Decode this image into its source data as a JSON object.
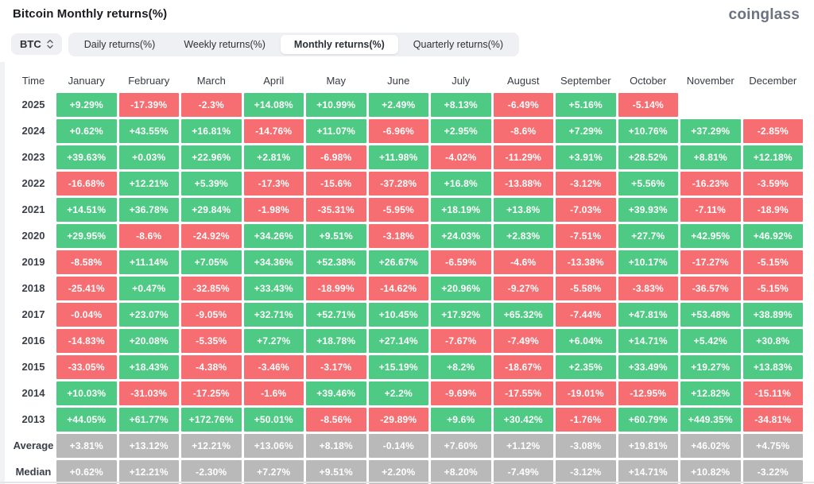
{
  "header": {
    "title": "Bitcoin Monthly returns(%)",
    "logo": "coinglass"
  },
  "controls": {
    "symbol": "BTC",
    "symbol_icon": "up-down-chevron-icon",
    "tabs": [
      {
        "label": "Daily returns(%)",
        "selected": false
      },
      {
        "label": "Weekly returns(%)",
        "selected": false
      },
      {
        "label": "Monthly returns(%)",
        "selected": true
      },
      {
        "label": "Quarterly returns(%)",
        "selected": false
      }
    ]
  },
  "colors": {
    "positive": "#4fca84",
    "negative": "#f66e72",
    "summary": "#b9b9b9"
  },
  "table": {
    "columns": [
      "Time",
      "January",
      "February",
      "March",
      "April",
      "May",
      "June",
      "July",
      "August",
      "September",
      "October",
      "November",
      "December"
    ],
    "rows": [
      {
        "label": "2025",
        "type": "year",
        "cells": [
          "+9.29%",
          "-17.39%",
          "-2.3%",
          "+14.08%",
          "+10.99%",
          "+2.49%",
          "+8.13%",
          "-6.49%",
          "+5.16%",
          "-5.14%",
          null,
          null
        ]
      },
      {
        "label": "2024",
        "type": "year",
        "cells": [
          "+0.62%",
          "+43.55%",
          "+16.81%",
          "-14.76%",
          "+11.07%",
          "-6.96%",
          "+2.95%",
          "-8.6%",
          "+7.29%",
          "+10.76%",
          "+37.29%",
          "-2.85%"
        ]
      },
      {
        "label": "2023",
        "type": "year",
        "cells": [
          "+39.63%",
          "+0.03%",
          "+22.96%",
          "+2.81%",
          "-6.98%",
          "+11.98%",
          "-4.02%",
          "-11.29%",
          "+3.91%",
          "+28.52%",
          "+8.81%",
          "+12.18%"
        ]
      },
      {
        "label": "2022",
        "type": "year",
        "cells": [
          "-16.68%",
          "+12.21%",
          "+5.39%",
          "-17.3%",
          "-15.6%",
          "-37.28%",
          "+16.8%",
          "-13.88%",
          "-3.12%",
          "+5.56%",
          "-16.23%",
          "-3.59%"
        ]
      },
      {
        "label": "2021",
        "type": "year",
        "cells": [
          "+14.51%",
          "+36.78%",
          "+29.84%",
          "-1.98%",
          "-35.31%",
          "-5.95%",
          "+18.19%",
          "+13.8%",
          "-7.03%",
          "+39.93%",
          "-7.11%",
          "-18.9%"
        ]
      },
      {
        "label": "2020",
        "type": "year",
        "cells": [
          "+29.95%",
          "-8.6%",
          "-24.92%",
          "+34.26%",
          "+9.51%",
          "-3.18%",
          "+24.03%",
          "+2.83%",
          "-7.51%",
          "+27.7%",
          "+42.95%",
          "+46.92%"
        ]
      },
      {
        "label": "2019",
        "type": "year",
        "cells": [
          "-8.58%",
          "+11.14%",
          "+7.05%",
          "+34.36%",
          "+52.38%",
          "+26.67%",
          "-6.59%",
          "-4.6%",
          "-13.38%",
          "+10.17%",
          "-17.27%",
          "-5.15%"
        ]
      },
      {
        "label": "2018",
        "type": "year",
        "cells": [
          "-25.41%",
          "+0.47%",
          "-32.85%",
          "+33.43%",
          "-18.99%",
          "-14.62%",
          "+20.96%",
          "-9.27%",
          "-5.58%",
          "-3.83%",
          "-36.57%",
          "-5.15%"
        ]
      },
      {
        "label": "2017",
        "type": "year",
        "cells": [
          "-0.04%",
          "+23.07%",
          "-9.05%",
          "+32.71%",
          "+52.71%",
          "+10.45%",
          "+17.92%",
          "+65.32%",
          "-7.44%",
          "+47.81%",
          "+53.48%",
          "+38.89%"
        ]
      },
      {
        "label": "2016",
        "type": "year",
        "cells": [
          "-14.83%",
          "+20.08%",
          "-5.35%",
          "+7.27%",
          "+18.78%",
          "+27.14%",
          "-7.67%",
          "-7.49%",
          "+6.04%",
          "+14.71%",
          "+5.42%",
          "+30.8%"
        ]
      },
      {
        "label": "2015",
        "type": "year",
        "cells": [
          "-33.05%",
          "+18.43%",
          "-4.38%",
          "-3.46%",
          "-3.17%",
          "+15.19%",
          "+8.2%",
          "-18.67%",
          "+2.35%",
          "+33.49%",
          "+19.27%",
          "+13.83%"
        ]
      },
      {
        "label": "2014",
        "type": "year",
        "cells": [
          "+10.03%",
          "-31.03%",
          "-17.25%",
          "-1.6%",
          "+39.46%",
          "+2.2%",
          "-9.69%",
          "-17.55%",
          "-19.01%",
          "-12.95%",
          "+12.82%",
          "-15.11%"
        ]
      },
      {
        "label": "2013",
        "type": "year",
        "cells": [
          "+44.05%",
          "+61.77%",
          "+172.76%",
          "+50.01%",
          "-8.56%",
          "-29.89%",
          "+9.6%",
          "+30.42%",
          "-1.76%",
          "+60.79%",
          "+449.35%",
          "-34.81%"
        ]
      },
      {
        "label": "Average",
        "type": "summary",
        "cells": [
          "+3.81%",
          "+13.12%",
          "+12.21%",
          "+13.06%",
          "+8.18%",
          "-0.14%",
          "+7.60%",
          "+1.12%",
          "-3.08%",
          "+19.81%",
          "+46.02%",
          "+4.75%"
        ]
      },
      {
        "label": "Median",
        "type": "summary",
        "cells": [
          "+0.62%",
          "+12.21%",
          "-2.30%",
          "+7.27%",
          "+9.51%",
          "+2.20%",
          "+8.20%",
          "-7.49%",
          "-3.12%",
          "+14.71%",
          "+10.82%",
          "-3.22%"
        ]
      }
    ]
  }
}
